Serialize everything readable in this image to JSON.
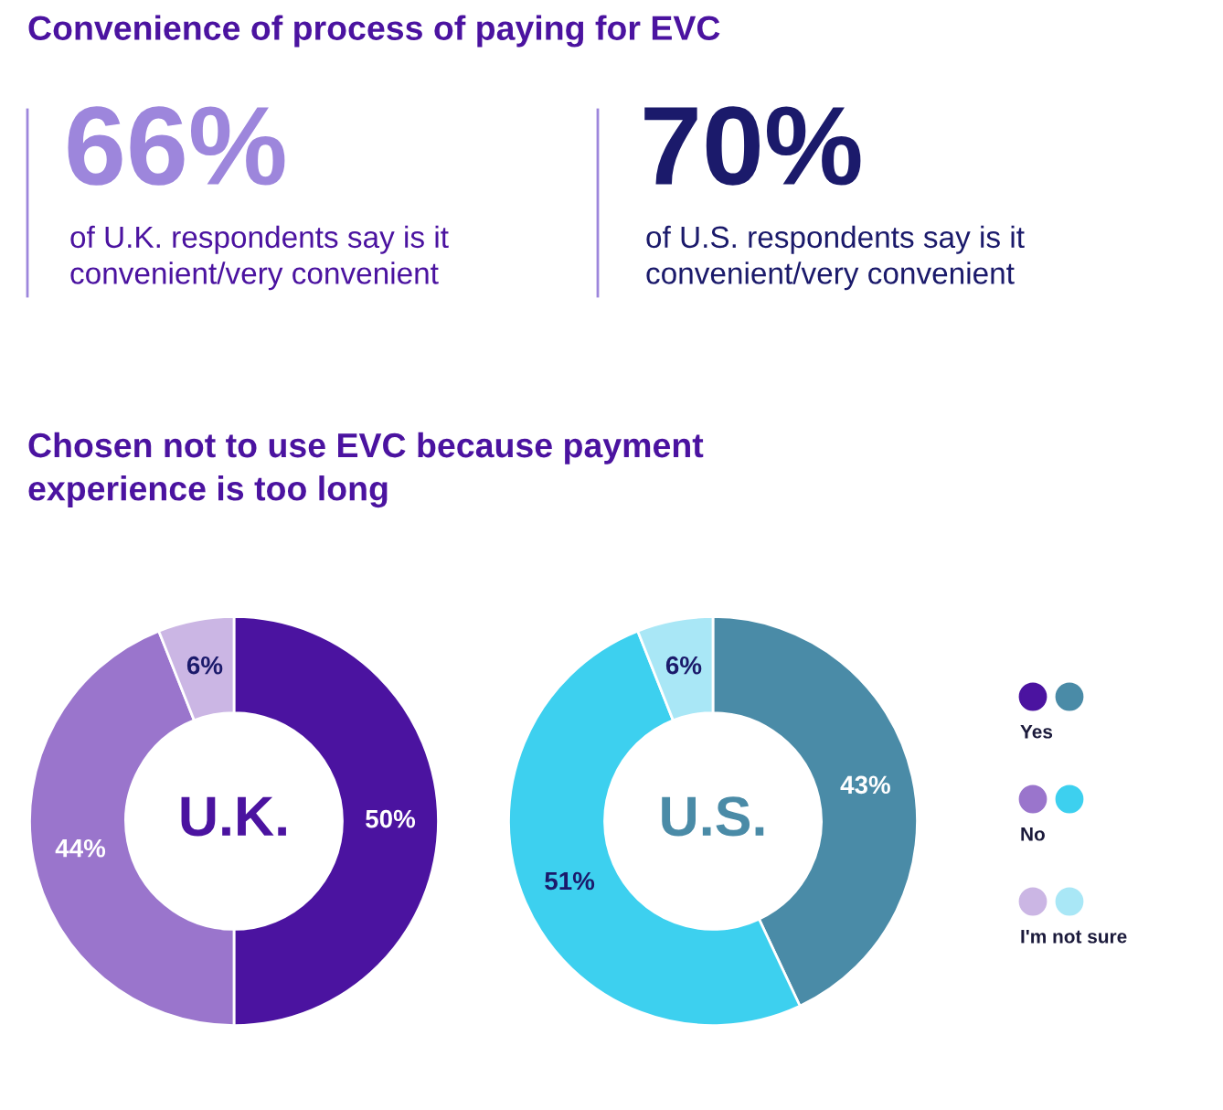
{
  "chart_data": [
    {
      "type": "other",
      "title": "Convenience of process of paying for EVC",
      "annotations": [
        "66%",
        "of U.K. respondents say is it\nconvenient/very convenient",
        "70%",
        "of U.S. respondents say is it\nconvenient/very convenient"
      ]
    },
    {
      "type": "donut",
      "title": "Chosen not to use EVC because payment\nexperience is too long",
      "categories": [
        "Yes",
        "No",
        "I'm not sure"
      ],
      "values": [
        50,
        44,
        6
      ],
      "colors": [
        "#4b13a0",
        "#9a75cc",
        "#cbb6e4"
      ],
      "value_labels": [
        "50%",
        "44%",
        "6%"
      ],
      "annotations": [
        "U.K."
      ],
      "legend": "right"
    },
    {
      "type": "donut",
      "categories": [
        null,
        null,
        null
      ],
      "values": [
        43,
        51,
        6
      ],
      "colors": [
        "#4a8ba7",
        "#3dd0ef",
        "#a9e7f6"
      ],
      "value_labels": [
        "43%",
        "51%",
        "6%"
      ],
      "annotations": [
        "U.S."
      ]
    }
  ]
}
